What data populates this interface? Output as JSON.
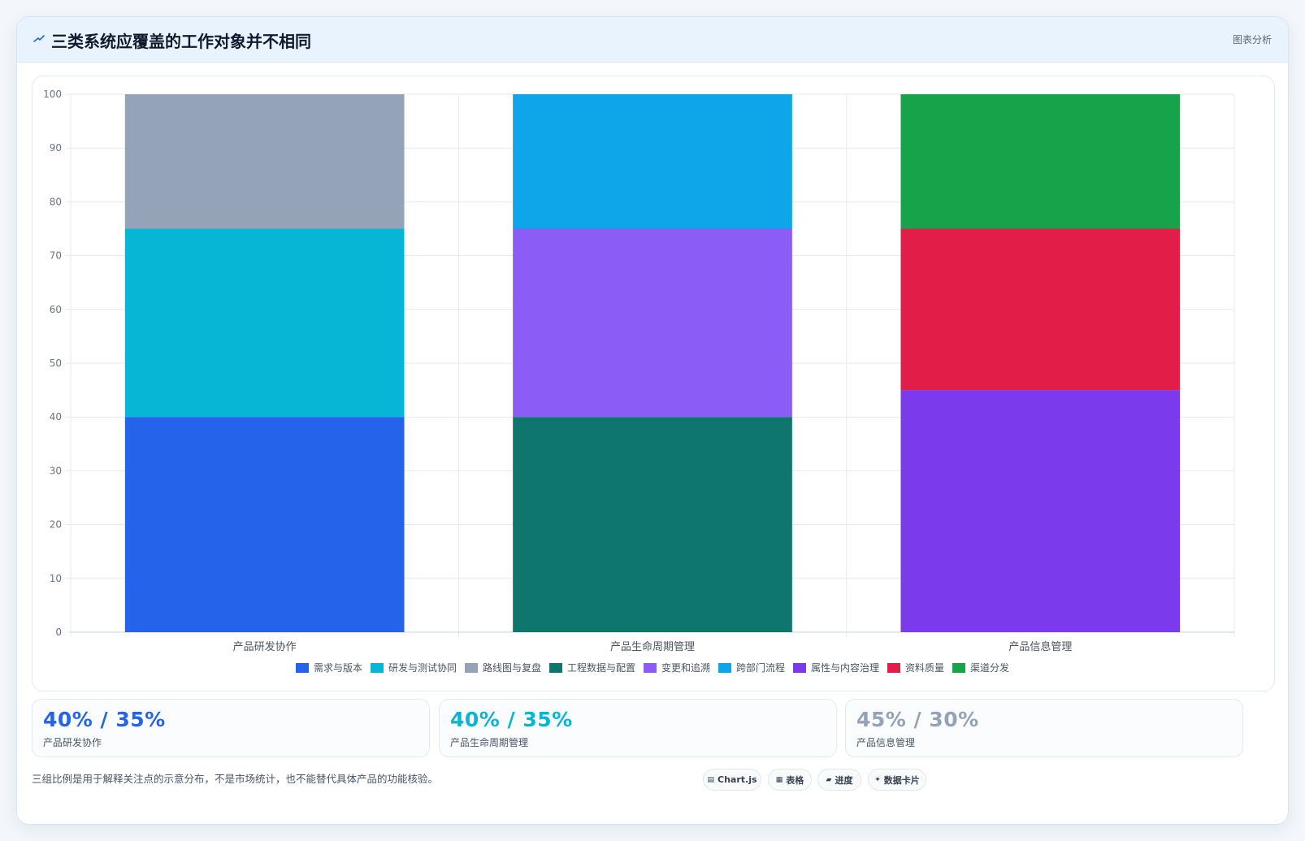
{
  "header": {
    "title": "三类系统应覆盖的工作对象并不相同",
    "action_label": "图表分析",
    "icon": "sparkle-icon"
  },
  "chart_data": {
    "type": "bar",
    "stacked": true,
    "categories": [
      "产品研发协作",
      "产品生命周期管理",
      "产品信息管理"
    ],
    "ylim": [
      0,
      100
    ],
    "yticks": [
      0,
      10,
      20,
      30,
      40,
      50,
      60,
      70,
      80,
      90,
      100
    ],
    "grid": true,
    "legend_position": "bottom",
    "series": [
      {
        "name": "需求与版本",
        "color": "#2563eb",
        "values": [
          40,
          0,
          0
        ]
      },
      {
        "name": "研发与测试协同",
        "color": "#06b6d4",
        "values": [
          35,
          0,
          0
        ]
      },
      {
        "name": "路线图与复盘",
        "color": "#94a3b8",
        "values": [
          25,
          0,
          0
        ]
      },
      {
        "name": "工程数据与配置",
        "color": "#0f766e",
        "values": [
          0,
          40,
          0
        ]
      },
      {
        "name": "变更和追溯",
        "color": "#8b5cf6",
        "values": [
          0,
          35,
          0
        ]
      },
      {
        "name": "跨部门流程",
        "color": "#0ea5e9",
        "values": [
          0,
          25,
          0
        ]
      },
      {
        "name": "属性与内容治理",
        "color": "#7c3aed",
        "values": [
          0,
          0,
          45
        ]
      },
      {
        "name": "资料质量",
        "color": "#e11d48",
        "values": [
          0,
          0,
          30
        ]
      },
      {
        "name": "渠道分发",
        "color": "#16a34a",
        "values": [
          0,
          0,
          25
        ]
      }
    ]
  },
  "stats": [
    {
      "value": "40% / 35%",
      "label": "产品研发协作",
      "color": "#2563eb"
    },
    {
      "value": "40% / 35%",
      "label": "产品生命周期管理",
      "color": "#06b6d4"
    },
    {
      "value": "45% / 30%",
      "label": "产品信息管理",
      "color": "#94a3b8"
    }
  ],
  "footnote": "三组比例是用于解释关注点的示意分布，不是市场统计，也不能替代具体产品的功能核验。",
  "chips": [
    {
      "icon": "▤",
      "label": "Chart.js"
    },
    {
      "icon": "▦",
      "label": "表格"
    },
    {
      "icon": "▰",
      "label": "进度"
    },
    {
      "icon": "✦",
      "label": "数据卡片"
    }
  ]
}
